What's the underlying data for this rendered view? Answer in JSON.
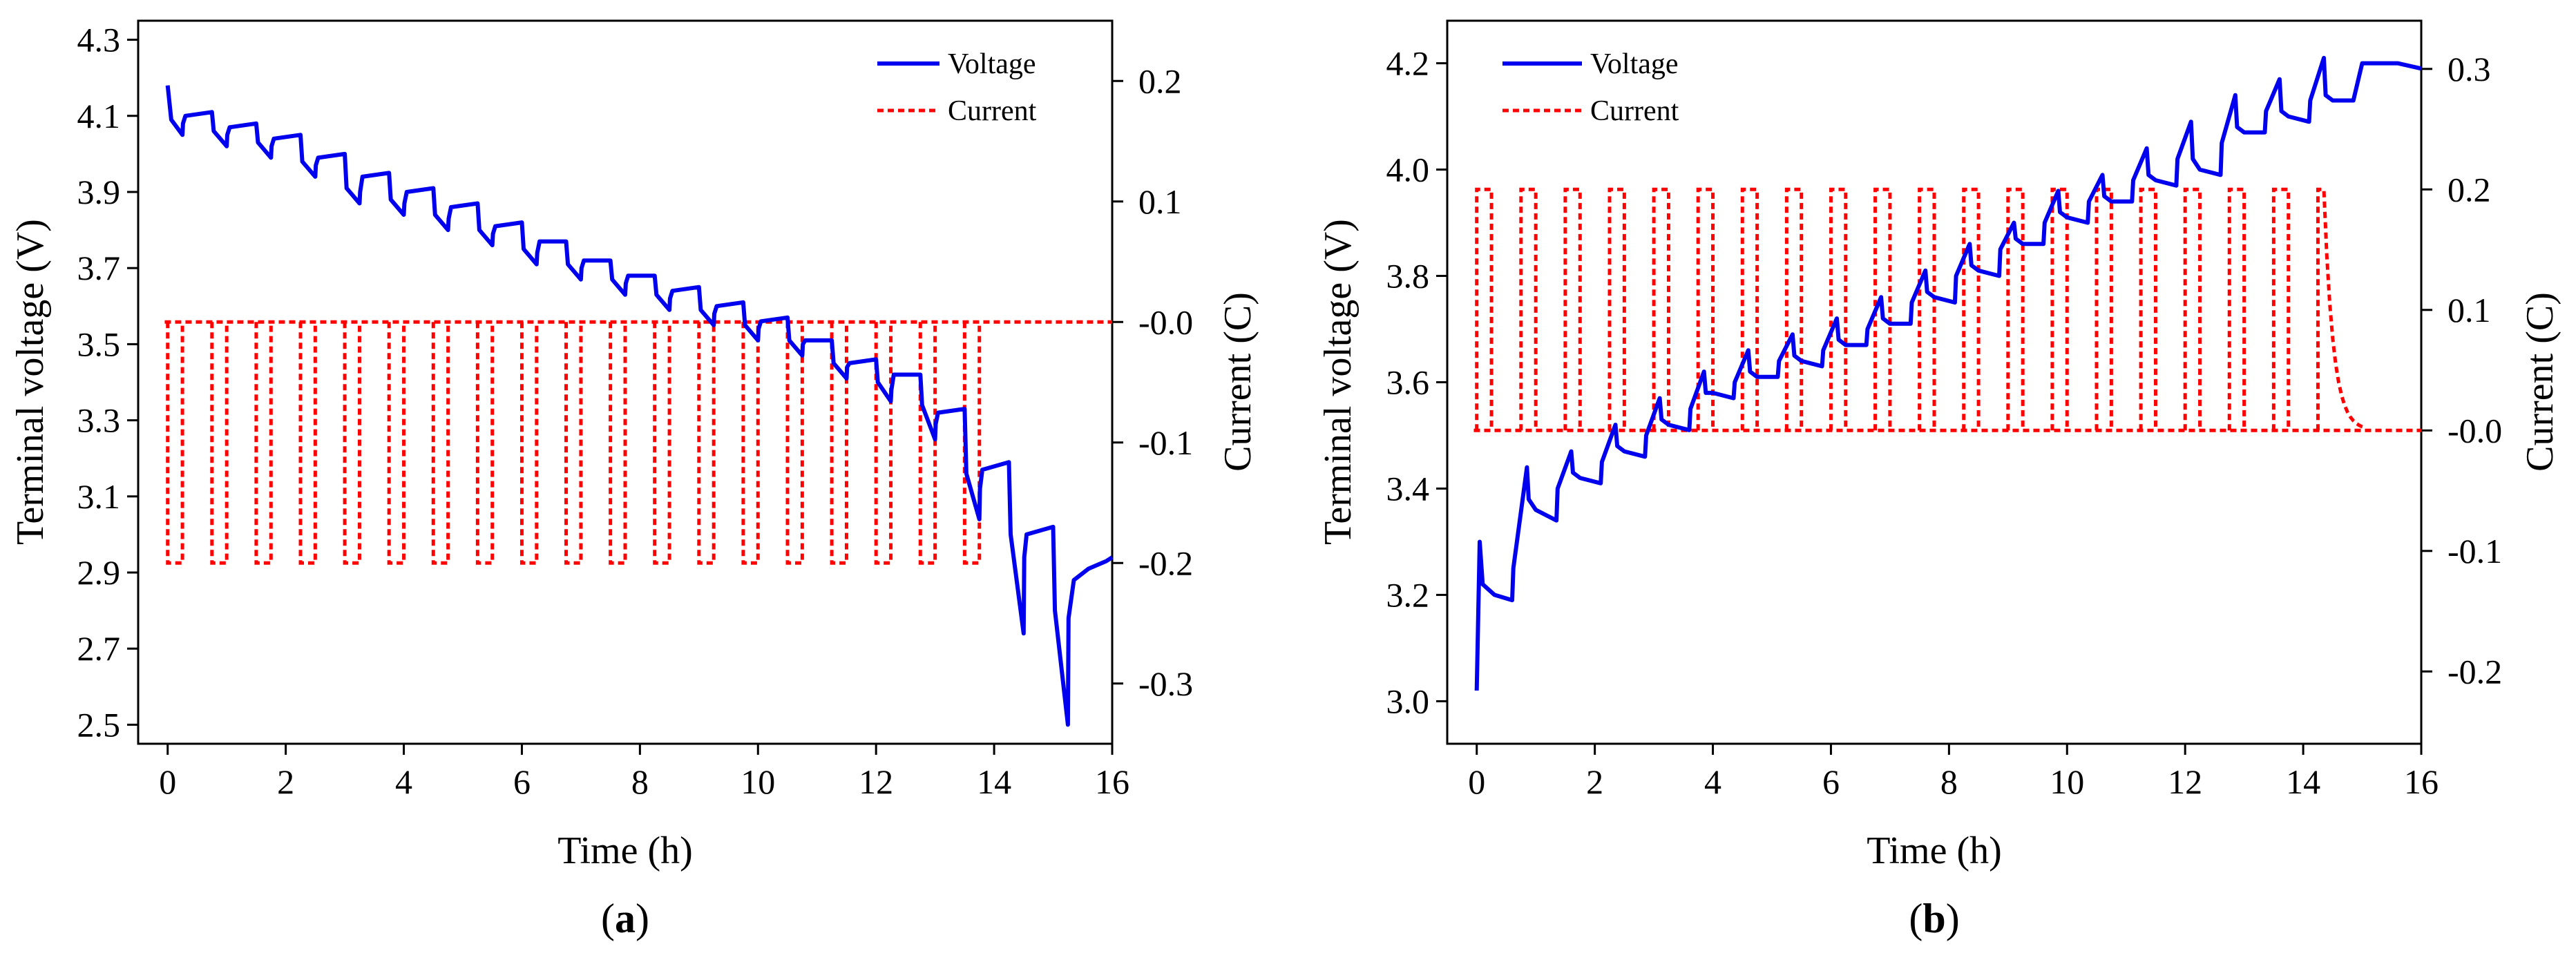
{
  "chart_data": [
    {
      "type": "line",
      "panel_label": {
        "open": "(",
        "letter": "a",
        "close": ")"
      },
      "xlabel": "Time (h)",
      "ylabel_left": "Terminal voltage (V)",
      "ylabel_right": "Current (C)",
      "xlim": [
        -0.5,
        16
      ],
      "ylim_left": [
        2.45,
        4.35
      ],
      "ylim_right": [
        -0.35,
        0.25
      ],
      "x_ticks": [
        0,
        2,
        4,
        6,
        8,
        10,
        12,
        14,
        16
      ],
      "x_tick_labels": [
        "0",
        "2",
        "4",
        "6",
        "8",
        "10",
        "12",
        "14",
        "16"
      ],
      "y_left_ticks": [
        2.5,
        2.7,
        2.9,
        3.1,
        3.3,
        3.5,
        3.7,
        3.9,
        4.1,
        4.3
      ],
      "y_left_tick_labels": [
        "2.5",
        "2.7",
        "2.9",
        "3.1",
        "3.3",
        "3.5",
        "3.7",
        "3.9",
        "4.1",
        "4.3"
      ],
      "y_right_ticks": [
        -0.3,
        -0.2,
        -0.1,
        0.0,
        0.1,
        0.2
      ],
      "y_right_tick_labels": [
        "-0.3",
        "-0.2",
        "-0.1",
        "-0.0",
        "0.1",
        "0.2"
      ],
      "legend": {
        "placement": "top-right",
        "entries": [
          "Voltage",
          "Current"
        ]
      },
      "pulse": {
        "count": 19,
        "period_h": 0.75,
        "duration_h": 0.25,
        "low_current": -0.2
      },
      "series": [
        {
          "name": "Voltage",
          "color": "#0000ee",
          "style": "solid",
          "axis": "left",
          "x": [
            0.0,
            0.06,
            0.25,
            0.26,
            0.3,
            0.75,
            0.78,
            1.0,
            1.01,
            1.05,
            1.5,
            1.53,
            1.75,
            1.76,
            1.8,
            2.25,
            2.28,
            2.5,
            2.51,
            2.55,
            3.0,
            3.03,
            3.25,
            3.26,
            3.3,
            3.75,
            3.78,
            4.0,
            4.01,
            4.05,
            4.5,
            4.53,
            4.75,
            4.76,
            4.8,
            5.25,
            5.28,
            5.5,
            5.51,
            5.55,
            6.0,
            6.03,
            6.25,
            6.26,
            6.3,
            6.75,
            6.78,
            7.0,
            7.01,
            7.05,
            7.5,
            7.53,
            7.75,
            7.76,
            7.8,
            8.25,
            8.28,
            8.5,
            8.51,
            8.55,
            9.0,
            9.03,
            9.25,
            9.26,
            9.3,
            9.75,
            9.78,
            10.0,
            10.01,
            10.05,
            10.5,
            10.53,
            10.75,
            10.76,
            10.8,
            11.25,
            11.28,
            11.5,
            11.51,
            11.55,
            12.0,
            12.03,
            12.25,
            12.26,
            12.3,
            12.75,
            12.78,
            13.0,
            13.01,
            13.05,
            13.5,
            13.53,
            13.75,
            13.76,
            13.8,
            14.25,
            14.28,
            14.5,
            14.51,
            14.55,
            15.0,
            15.03,
            15.25,
            15.26,
            15.35,
            15.6,
            15.9,
            16.0
          ],
          "y": [
            4.18,
            4.09,
            4.05,
            4.08,
            4.1,
            4.11,
            4.06,
            4.02,
            4.05,
            4.07,
            4.08,
            4.03,
            3.99,
            4.02,
            4.04,
            4.05,
            3.98,
            3.94,
            3.97,
            3.99,
            4.0,
            3.91,
            3.87,
            3.9,
            3.94,
            3.95,
            3.88,
            3.84,
            3.87,
            3.9,
            3.91,
            3.84,
            3.8,
            3.83,
            3.86,
            3.87,
            3.8,
            3.76,
            3.79,
            3.81,
            3.82,
            3.75,
            3.71,
            3.74,
            3.77,
            3.77,
            3.71,
            3.67,
            3.7,
            3.72,
            3.72,
            3.67,
            3.63,
            3.66,
            3.68,
            3.68,
            3.63,
            3.59,
            3.62,
            3.64,
            3.65,
            3.59,
            3.55,
            3.58,
            3.6,
            3.61,
            3.55,
            3.51,
            3.54,
            3.56,
            3.57,
            3.51,
            3.47,
            3.5,
            3.51,
            3.51,
            3.45,
            3.41,
            3.44,
            3.45,
            3.46,
            3.4,
            3.35,
            3.38,
            3.42,
            3.42,
            3.34,
            3.25,
            3.29,
            3.32,
            3.33,
            3.16,
            3.04,
            3.12,
            3.17,
            3.19,
            3.0,
            2.74,
            2.94,
            3.0,
            3.02,
            2.8,
            2.5,
            2.78,
            2.88,
            2.91,
            2.93,
            2.94
          ]
        },
        {
          "name": "Current",
          "color": "#ff0000",
          "style": "dashed",
          "axis": "right",
          "x": [
            -0.05,
            16.0
          ],
          "y": [
            0.0,
            0.0
          ]
        }
      ]
    },
    {
      "type": "line",
      "panel_label": {
        "open": "(",
        "letter": "b",
        "close": ")"
      },
      "xlabel": "Time (h)",
      "ylabel_left": "Terminal voltage (V)",
      "ylabel_right": "Current (C)",
      "xlim": [
        -0.5,
        16
      ],
      "ylim_left": [
        2.92,
        4.28
      ],
      "ylim_right": [
        -0.26,
        0.34
      ],
      "x_ticks": [
        0,
        2,
        4,
        6,
        8,
        10,
        12,
        14,
        16
      ],
      "x_tick_labels": [
        "0",
        "2",
        "4",
        "6",
        "8",
        "10",
        "12",
        "14",
        "16"
      ],
      "y_left_ticks": [
        3.0,
        3.2,
        3.4,
        3.6,
        3.8,
        4.0,
        4.2
      ],
      "y_left_tick_labels": [
        "3.0",
        "3.2",
        "3.4",
        "3.6",
        "3.8",
        "4.0",
        "4.2"
      ],
      "y_right_ticks": [
        -0.2,
        -0.1,
        0.0,
        0.1,
        0.2,
        0.3
      ],
      "y_right_tick_labels": [
        "-0.2",
        "-0.1",
        "-0.0",
        "0.1",
        "0.2",
        "0.3"
      ],
      "legend": {
        "placement": "top-left",
        "entries": [
          "Voltage",
          "Current"
        ]
      },
      "pulse": {
        "count": 20,
        "period_h": 0.75,
        "duration_h": 0.25,
        "high_current": 0.2
      },
      "series": [
        {
          "name": "Voltage",
          "color": "#0000ee",
          "style": "solid",
          "axis": "left",
          "x": [
            0.0,
            0.05,
            0.1,
            0.3,
            0.6,
            0.62,
            0.85,
            0.88,
            1.0,
            1.35,
            1.37,
            1.6,
            1.63,
            1.75,
            2.1,
            2.12,
            2.35,
            2.38,
            2.5,
            2.85,
            2.87,
            3.1,
            3.13,
            3.25,
            3.6,
            3.62,
            3.85,
            3.88,
            4.0,
            4.35,
            4.37,
            4.6,
            4.63,
            4.75,
            5.1,
            5.12,
            5.35,
            5.38,
            5.5,
            5.85,
            5.87,
            6.1,
            6.13,
            6.25,
            6.6,
            6.62,
            6.85,
            6.88,
            7.0,
            7.35,
            7.37,
            7.6,
            7.63,
            7.75,
            8.1,
            8.12,
            8.35,
            8.38,
            8.5,
            8.85,
            8.87,
            9.1,
            9.13,
            9.25,
            9.6,
            9.62,
            9.85,
            9.88,
            10.0,
            10.35,
            10.37,
            10.6,
            10.63,
            10.75,
            11.1,
            11.12,
            11.35,
            11.38,
            11.5,
            11.85,
            11.87,
            12.1,
            12.13,
            12.25,
            12.6,
            12.62,
            12.85,
            12.88,
            13.0,
            13.35,
            13.37,
            13.6,
            13.63,
            13.75,
            14.1,
            14.12,
            14.35,
            14.38,
            14.5,
            14.85,
            15.0,
            15.6,
            16.0
          ],
          "y": [
            3.02,
            3.3,
            3.22,
            3.2,
            3.19,
            3.25,
            3.44,
            3.38,
            3.36,
            3.34,
            3.4,
            3.47,
            3.43,
            3.42,
            3.41,
            3.45,
            3.52,
            3.48,
            3.47,
            3.46,
            3.5,
            3.57,
            3.53,
            3.52,
            3.51,
            3.55,
            3.62,
            3.58,
            3.58,
            3.57,
            3.6,
            3.66,
            3.62,
            3.61,
            3.61,
            3.64,
            3.69,
            3.65,
            3.64,
            3.63,
            3.66,
            3.72,
            3.68,
            3.67,
            3.67,
            3.7,
            3.76,
            3.72,
            3.71,
            3.71,
            3.75,
            3.81,
            3.77,
            3.76,
            3.75,
            3.8,
            3.86,
            3.82,
            3.81,
            3.8,
            3.85,
            3.9,
            3.87,
            3.86,
            3.86,
            3.9,
            3.96,
            3.92,
            3.91,
            3.9,
            3.94,
            3.99,
            3.95,
            3.94,
            3.94,
            3.98,
            4.04,
            3.99,
            3.98,
            3.97,
            4.02,
            4.09,
            4.02,
            4.0,
            3.99,
            4.05,
            4.14,
            4.08,
            4.07,
            4.07,
            4.11,
            4.17,
            4.11,
            4.1,
            4.09,
            4.13,
            4.21,
            4.14,
            4.13,
            4.13,
            4.2,
            4.2,
            4.19
          ]
        },
        {
          "name": "Current",
          "color": "#ff0000",
          "style": "dashed",
          "axis": "right",
          "x": [
            -0.05,
            16.0
          ],
          "y": [
            0.0,
            0.0
          ]
        }
      ]
    }
  ]
}
